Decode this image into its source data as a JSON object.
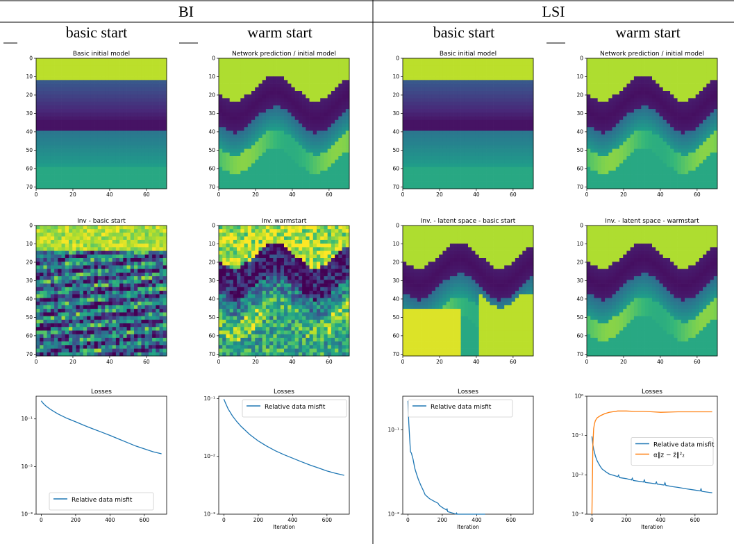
{
  "header": {
    "groups": [
      "BI",
      "LSI"
    ],
    "columns": [
      "basic start",
      "warm start",
      "basic start",
      "warm start"
    ]
  },
  "colors": {
    "blue": "#1f77b4",
    "orange": "#ff7f0e",
    "viridis_dark": "#440154",
    "viridis_yellow": "#fde725"
  },
  "chart_data": [
    {
      "type": "heatmap",
      "title": "Basic initial model",
      "colormap": "viridis",
      "xlim": [
        0,
        70
      ],
      "ylim": [
        70,
        0
      ],
      "xticks": [
        0,
        20,
        40,
        60
      ],
      "yticks": [
        0,
        10,
        20,
        30,
        40,
        50,
        60,
        70
      ],
      "pattern": "layered"
    },
    {
      "type": "heatmap",
      "title": "Network prediction / initial model",
      "colormap": "viridis",
      "xlim": [
        0,
        70
      ],
      "ylim": [
        70,
        0
      ],
      "xticks": [
        0,
        20,
        40,
        60
      ],
      "yticks": [
        0,
        10,
        20,
        30,
        40,
        50,
        60,
        70
      ],
      "pattern": "wave"
    },
    {
      "type": "heatmap",
      "title": "Basic initial model",
      "colormap": "viridis",
      "xlim": [
        0,
        70
      ],
      "ylim": [
        70,
        0
      ],
      "xticks": [
        0,
        20,
        40,
        60
      ],
      "yticks": [
        0,
        10,
        20,
        30,
        40,
        50,
        60,
        70
      ],
      "pattern": "layered"
    },
    {
      "type": "heatmap",
      "title": "Network prediction / initial model",
      "colormap": "viridis",
      "xlim": [
        0,
        70
      ],
      "ylim": [
        70,
        0
      ],
      "xticks": [
        0,
        20,
        40,
        60
      ],
      "yticks": [
        0,
        10,
        20,
        30,
        40,
        50,
        60,
        70
      ],
      "pattern": "wave"
    },
    {
      "type": "heatmap",
      "title": "Inv - basic start",
      "colormap": "viridis",
      "xlim": [
        0,
        70
      ],
      "ylim": [
        70,
        0
      ],
      "xticks": [
        0,
        20,
        40,
        60
      ],
      "yticks": [
        0,
        10,
        20,
        30,
        40,
        50,
        60,
        70
      ],
      "pattern": "noisy"
    },
    {
      "type": "heatmap",
      "title": "Inv. warmstart",
      "colormap": "viridis",
      "xlim": [
        0,
        70
      ],
      "ylim": [
        70,
        0
      ],
      "xticks": [
        0,
        20,
        40,
        60
      ],
      "yticks": [
        0,
        10,
        20,
        30,
        40,
        50,
        60,
        70
      ],
      "pattern": "wave_noisy"
    },
    {
      "type": "heatmap",
      "title": "Inv. - latent space - basic start",
      "colormap": "viridis",
      "xlim": [
        0,
        70
      ],
      "ylim": [
        70,
        0
      ],
      "xticks": [
        0,
        20,
        40,
        60
      ],
      "yticks": [
        0,
        10,
        20,
        30,
        40,
        50,
        60,
        70
      ],
      "pattern": "wave_bright"
    },
    {
      "type": "heatmap",
      "title": "Inv. - latent space - warmstart",
      "colormap": "viridis",
      "xlim": [
        0,
        70
      ],
      "ylim": [
        70,
        0
      ],
      "xticks": [
        0,
        20,
        40,
        60
      ],
      "yticks": [
        0,
        10,
        20,
        30,
        40,
        50,
        60,
        70
      ],
      "pattern": "wave"
    },
    {
      "type": "line",
      "title": "Losses",
      "xlabel": "",
      "yscale": "log",
      "ylim": [
        0.001,
        0.3
      ],
      "yticks": [
        0.001,
        0.01,
        0.1
      ],
      "ytick_labels": [
        "10⁻³",
        "10⁻²",
        "10⁻¹"
      ],
      "xlim": [
        -30,
        730
      ],
      "xticks": [
        0,
        200,
        400,
        600
      ],
      "legend": "lower-center",
      "series": [
        {
          "name": "Relative data misfit",
          "color": "#1f77b4",
          "x": [
            0,
            10,
            25,
            50,
            75,
            100,
            150,
            200,
            250,
            300,
            350,
            400,
            450,
            500,
            550,
            600,
            650,
            700
          ],
          "y": [
            0.24,
            0.215,
            0.19,
            0.162,
            0.142,
            0.126,
            0.103,
            0.087,
            0.073,
            0.062,
            0.053,
            0.045,
            0.038,
            0.032,
            0.027,
            0.0235,
            0.0205,
            0.0185
          ]
        }
      ]
    },
    {
      "type": "line",
      "title": "Losses",
      "xlabel": "Iteration",
      "yscale": "log",
      "ylim": [
        0.001,
        0.11
      ],
      "yticks": [
        0.001,
        0.01,
        0.1
      ],
      "ytick_labels": [
        "10⁻³",
        "10⁻²",
        "10⁻¹"
      ],
      "xlim": [
        -30,
        730
      ],
      "xticks": [
        0,
        200,
        400,
        600
      ],
      "legend": "top-right",
      "series": [
        {
          "name": "Relative data misfit",
          "color": "#1f77b4",
          "x": [
            0,
            10,
            25,
            50,
            75,
            100,
            150,
            200,
            250,
            300,
            350,
            400,
            450,
            500,
            550,
            600,
            650,
            700
          ],
          "y": [
            0.098,
            0.083,
            0.066,
            0.05,
            0.04,
            0.033,
            0.024,
            0.0185,
            0.015,
            0.0125,
            0.0107,
            0.0093,
            0.0081,
            0.0071,
            0.0063,
            0.0056,
            0.0051,
            0.0047
          ]
        }
      ]
    },
    {
      "type": "line",
      "title": "Losses",
      "xlabel": "Iteration",
      "yscale": "log",
      "ylim": [
        0.01,
        0.25
      ],
      "yticks": [
        0.01,
        0.1
      ],
      "ytick_labels": [
        "10⁻²",
        "10⁻¹"
      ],
      "xlim": [
        -30,
        730
      ],
      "xticks": [
        0,
        200,
        400,
        600
      ],
      "legend": "top-left",
      "series": [
        {
          "name": "Relative data misfit",
          "color": "#1f77b4",
          "x": [
            0,
            5,
            10,
            15,
            20,
            30,
            40,
            50,
            60,
            75,
            90,
            100,
            125,
            150,
            175,
            178,
            182,
            200,
            225,
            228,
            232,
            260,
            280,
            283,
            287,
            300,
            330,
            334,
            340,
            400,
            450
          ],
          "y": [
            0.22,
            0.12,
            0.08,
            0.055,
            0.053,
            0.045,
            0.035,
            0.03,
            0.026,
            0.022,
            0.019,
            0.017,
            0.0153,
            0.0143,
            0.0135,
            0.0132,
            0.0128,
            0.012,
            0.0112,
            0.0115,
            0.0107,
            0.0103,
            0.01,
            0.0103,
            0.0099,
            0.0097,
            0.0095,
            0.0098,
            0.0094,
            0.0092,
            0.009
          ]
        }
      ]
    },
    {
      "type": "line",
      "title": "Losses",
      "xlabel": "Iteration",
      "yscale": "log",
      "ylim": [
        0.001,
        1
      ],
      "yticks": [
        0.001,
        0.01,
        0.1,
        1
      ],
      "ytick_labels": [
        "10⁻³",
        "10⁻²",
        "10⁻¹",
        "10⁰"
      ],
      "xlim": [
        -30,
        730
      ],
      "xticks": [
        0,
        200,
        400,
        600
      ],
      "legend": "center-right",
      "series": [
        {
          "name": "Relative data misfit",
          "color": "#1f77b4",
          "x": [
            0,
            5,
            10,
            20,
            30,
            40,
            50,
            60,
            70,
            80,
            100,
            150,
            155,
            160,
            200,
            230,
            235,
            240,
            300,
            305,
            310,
            350,
            370,
            375,
            380,
            420,
            425,
            430,
            470,
            500,
            550,
            600,
            630,
            635,
            640,
            680,
            700
          ],
          "y": [
            0.095,
            0.06,
            0.045,
            0.03,
            0.023,
            0.019,
            0.016,
            0.014,
            0.013,
            0.012,
            0.0105,
            0.009,
            0.0098,
            0.0085,
            0.008,
            0.0074,
            0.0082,
            0.0072,
            0.0066,
            0.0074,
            0.0064,
            0.0061,
            0.0059,
            0.0066,
            0.0058,
            0.0055,
            0.0063,
            0.0054,
            0.005,
            0.0048,
            0.0044,
            0.0041,
            0.0039,
            0.0044,
            0.0038,
            0.0036,
            0.0035
          ]
        },
        {
          "name": "α‖z − z̃‖²₂",
          "color": "#ff7f0e",
          "x": [
            0,
            3,
            5,
            8,
            10,
            15,
            20,
            30,
            40,
            50,
            75,
            100,
            150,
            200,
            250,
            300,
            350,
            400,
            450,
            500,
            550,
            600,
            650,
            700
          ],
          "y": [
            0.001,
            0.01,
            0.05,
            0.1,
            0.15,
            0.2,
            0.24,
            0.28,
            0.3,
            0.32,
            0.36,
            0.39,
            0.42,
            0.42,
            0.41,
            0.41,
            0.4,
            0.39,
            0.395,
            0.4,
            0.4,
            0.4,
            0.4,
            0.4
          ]
        }
      ]
    }
  ]
}
